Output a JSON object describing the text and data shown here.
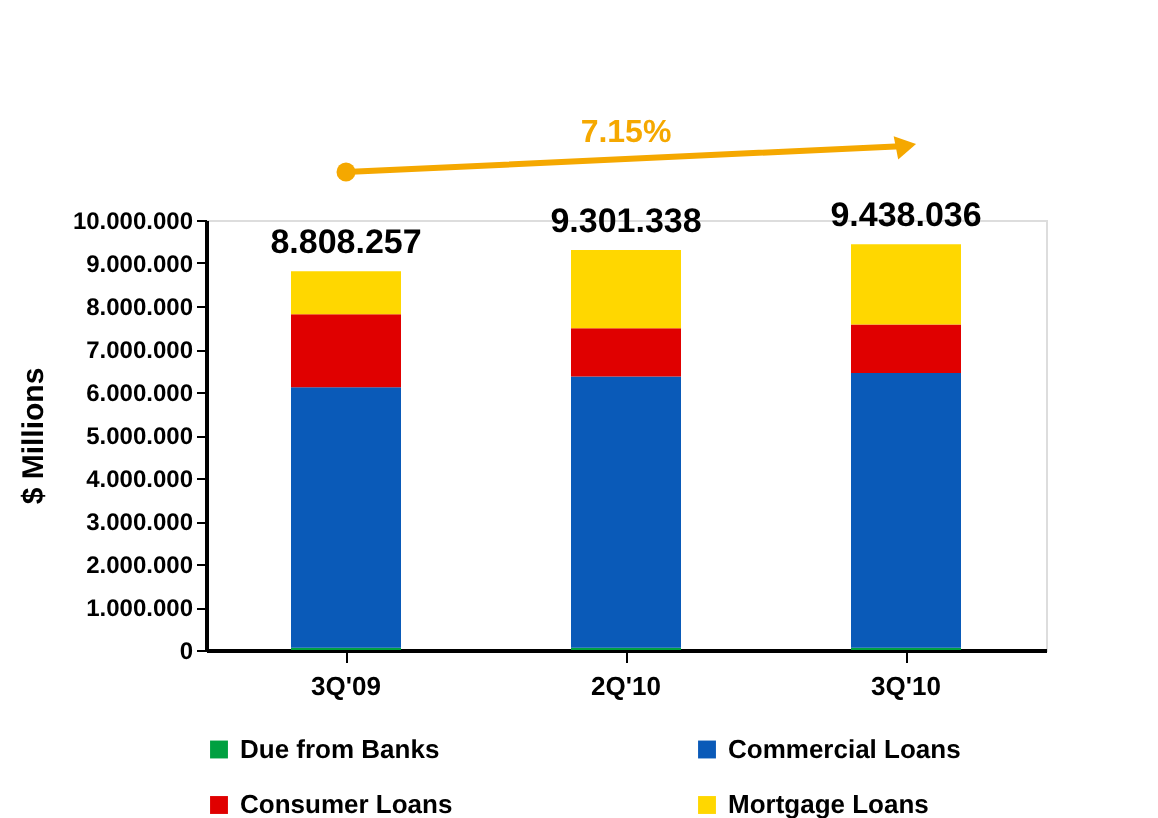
{
  "chart_data": {
    "type": "bar",
    "stacked": true,
    "ylabel": "$ Millions",
    "categories": [
      "3Q'09",
      "2Q'10",
      "3Q'10"
    ],
    "series": [
      {
        "name": "Due from Banks",
        "color": "#00a040",
        "values": [
          50000,
          50000,
          50000
        ]
      },
      {
        "name": "Commercial Loans",
        "color": "#0a5ab8",
        "values": [
          6060000,
          6310000,
          6390000
        ]
      },
      {
        "name": "Consumer Loans",
        "color": "#e00000",
        "values": [
          1700000,
          1120000,
          1130000
        ]
      },
      {
        "name": "Mortgage Loans",
        "color": "#ffd700",
        "values": [
          998257,
          1821338,
          1868036
        ]
      }
    ],
    "totals": [
      "8.808.257",
      "9.301.338",
      "9.438.036"
    ],
    "annotations": [
      "7.15%"
    ],
    "ylim": [
      0,
      10000000
    ],
    "yticks": [
      0,
      {
        "value": 1000000,
        "label": "1.000.000"
      },
      {
        "value": 2000000,
        "label": "2.000.000"
      },
      {
        "value": 3000000,
        "label": "3.000.000"
      },
      {
        "value": 4000000,
        "label": "4.000.000"
      },
      {
        "value": 5000000,
        "label": "5.000.000"
      },
      {
        "value": 6000000,
        "label": "6.000.000"
      },
      {
        "value": 7000000,
        "label": "7.000.000"
      },
      {
        "value": 8000000,
        "label": "8.000.000"
      },
      {
        "value": 9000000,
        "label": "9.000.000"
      },
      {
        "value": 10000000,
        "label": "10.000.000"
      }
    ],
    "grid": false,
    "legend": "bottom"
  }
}
